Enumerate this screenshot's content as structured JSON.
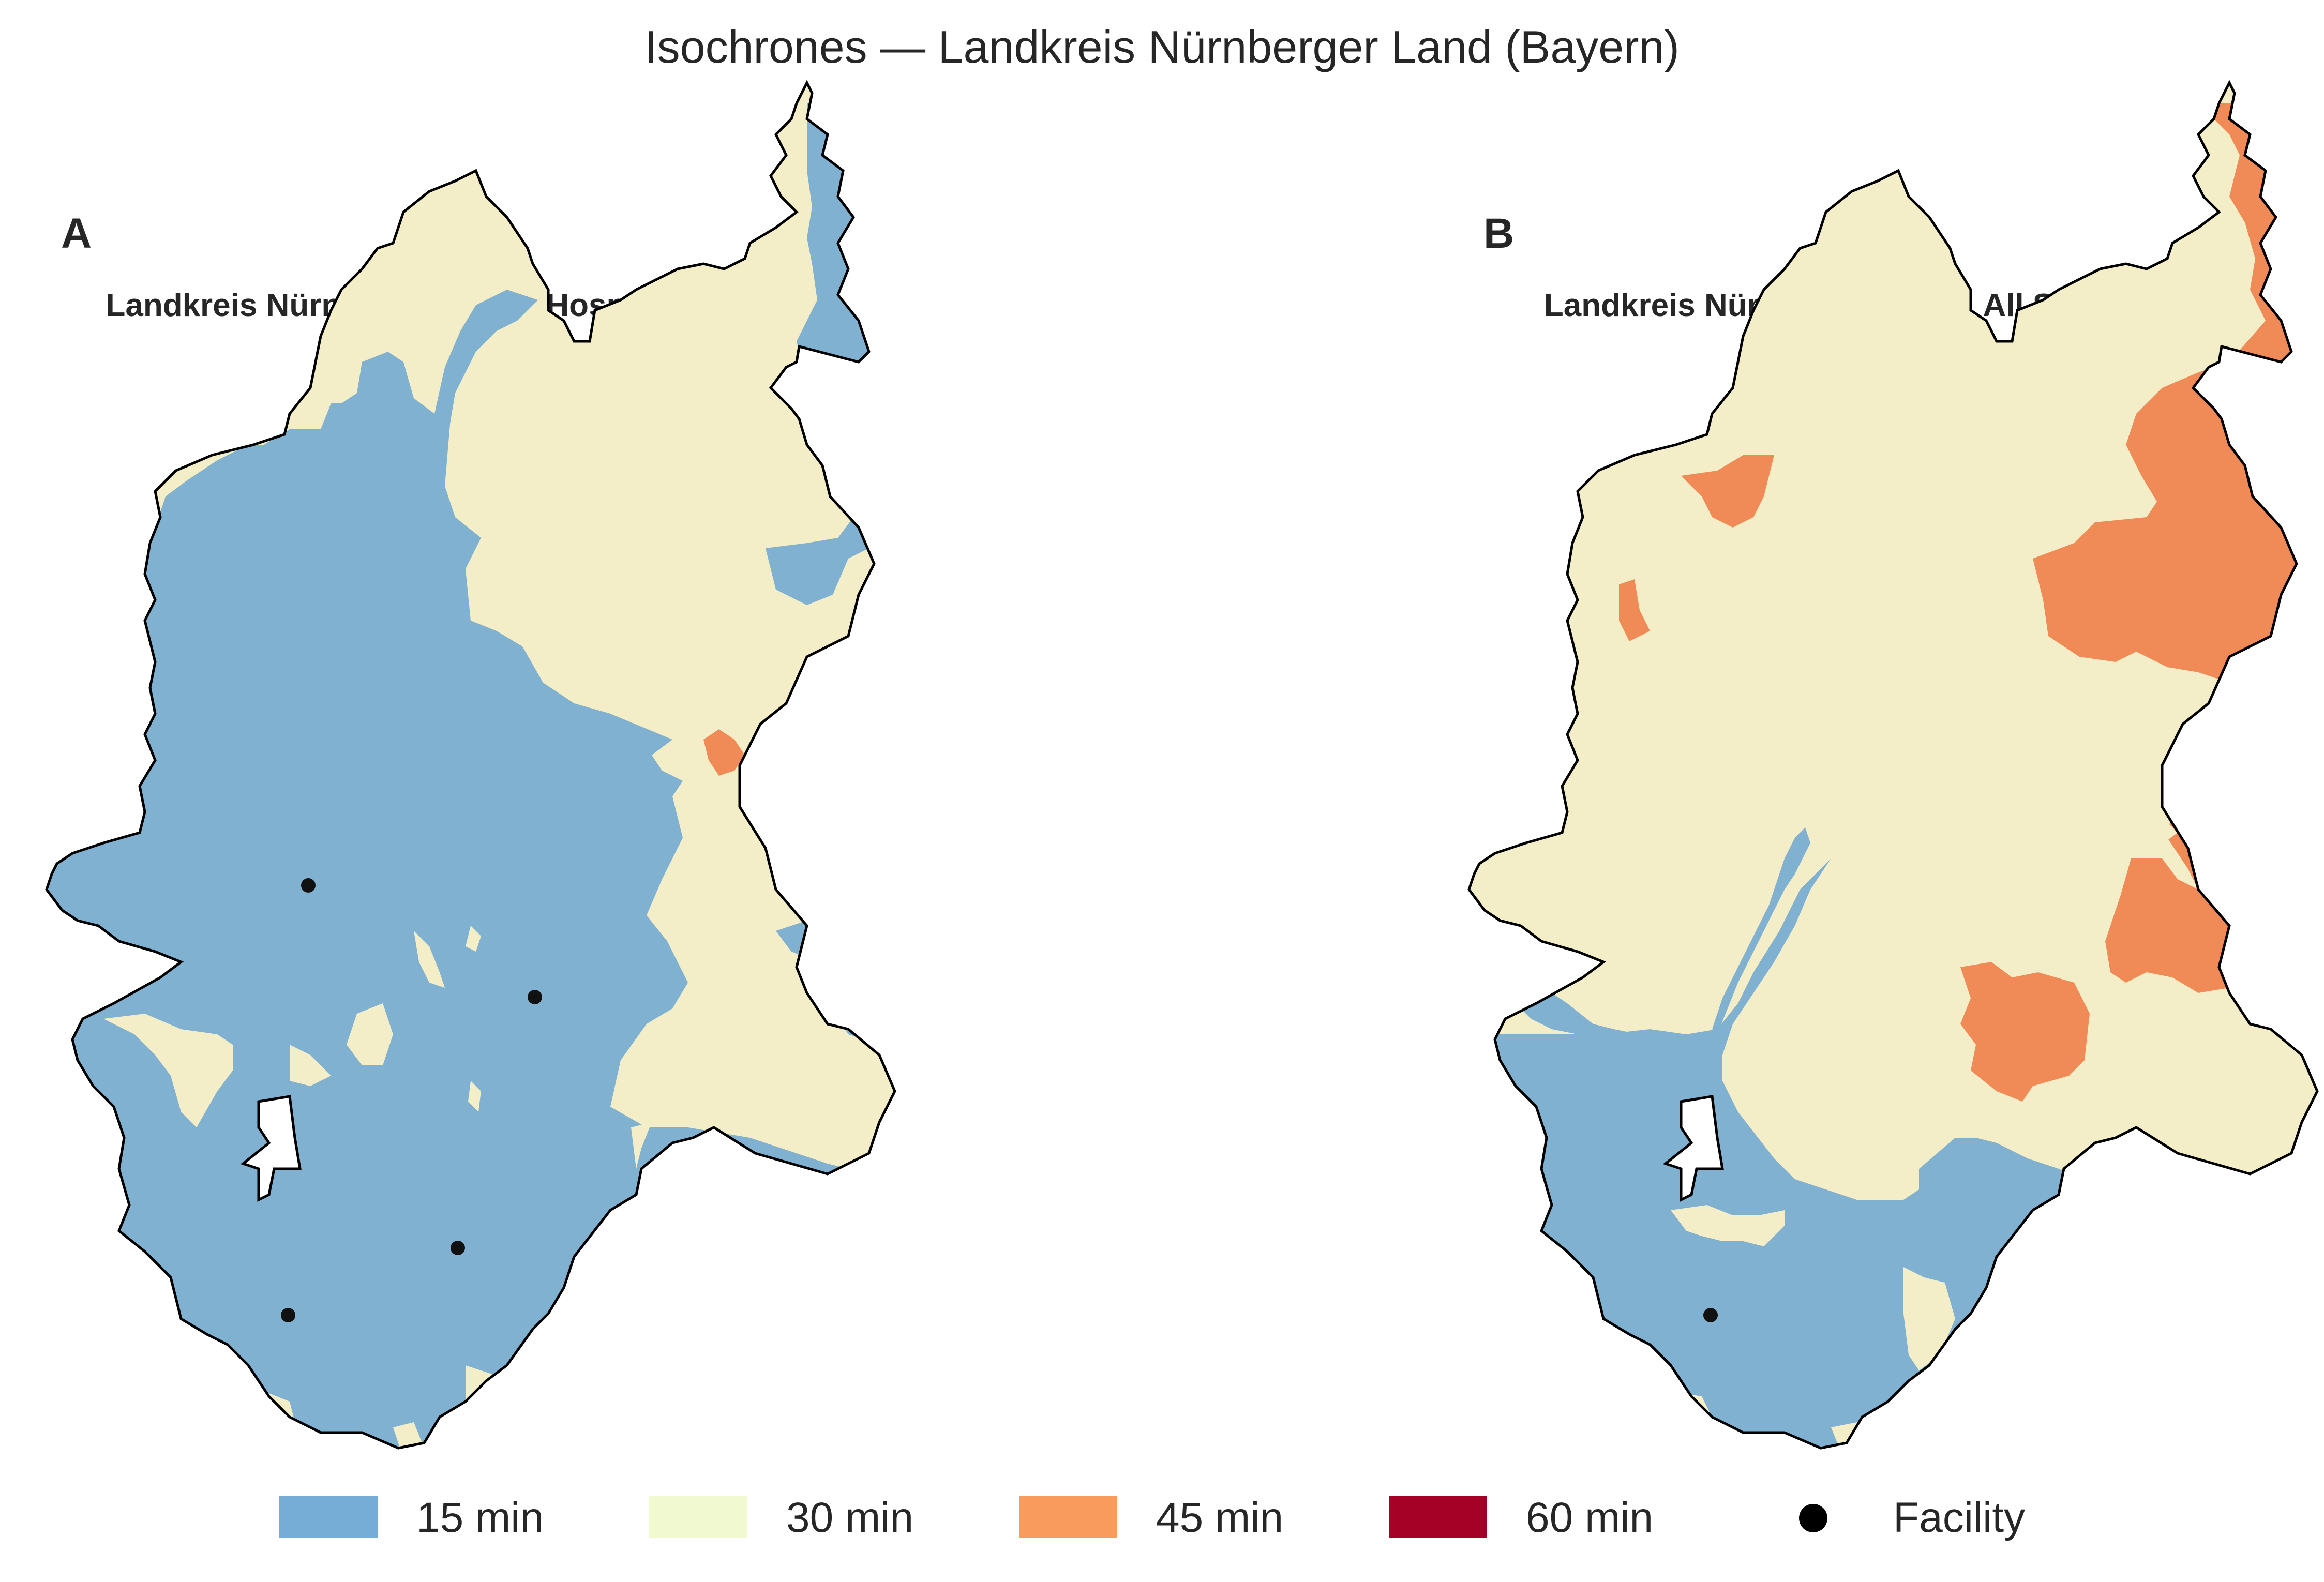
{
  "title": "Isochrones — Landkreis Nürnberger Land (Bayern)",
  "colors": {
    "15 min": "#80b1d1",
    "30 min": "#f3eec8",
    "45 min": "#f08a56",
    "60 min": "#a50026",
    "legend_15": "#76add6",
    "legend_30": "#f1f9d0",
    "legend_45": "#f99b5c",
    "legend_60": "#a50026",
    "outline": "#000000",
    "facility": "#111111"
  },
  "panels": [
    {
      "letter": "A",
      "title": "Landkreis Nürnberger Land: Hospitals with CT",
      "facility_count": 4
    },
    {
      "letter": "B",
      "title": "Landkreis Nürnberger Land: All Stroke Units",
      "facility_count": 1
    }
  ],
  "legend": {
    "items": [
      {
        "label": "15 min",
        "icon": "swatch"
      },
      {
        "label": "30 min",
        "icon": "swatch"
      },
      {
        "label": "45 min",
        "icon": "swatch"
      },
      {
        "label": "60 min",
        "icon": "swatch"
      },
      {
        "label": "Facility",
        "icon": "dot"
      }
    ]
  }
}
